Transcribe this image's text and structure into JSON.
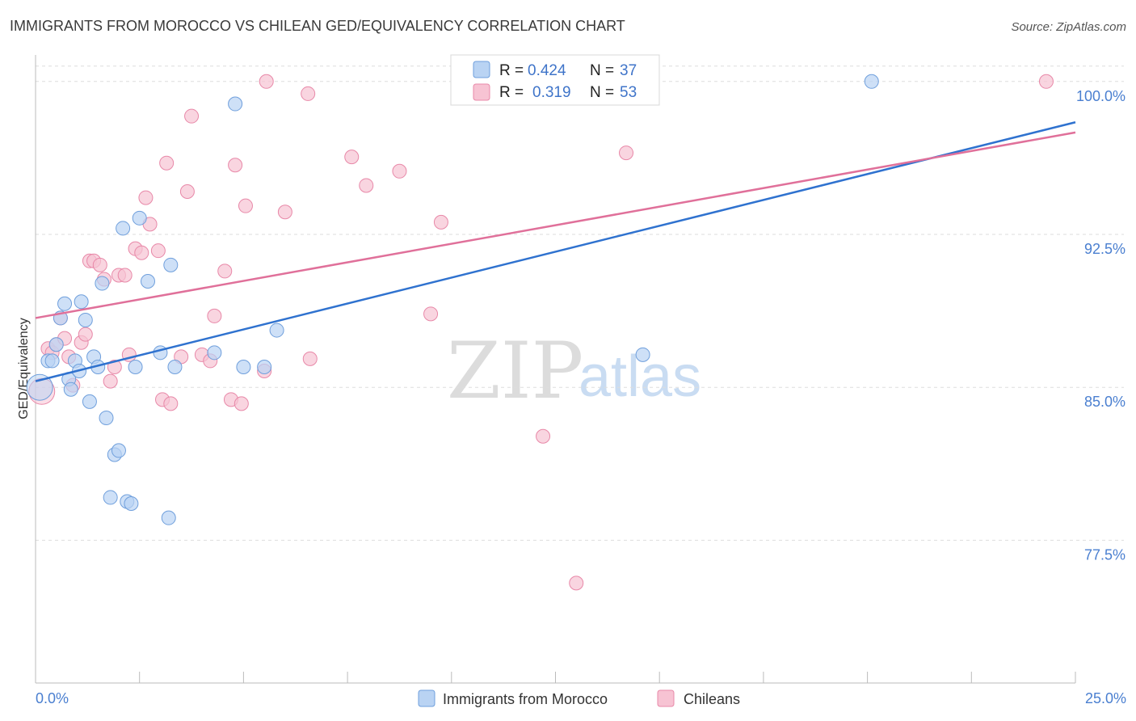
{
  "title": "IMMIGRANTS FROM MOROCCO VS CHILEAN GED/EQUIVALENCY CORRELATION CHART",
  "source": "Source: ZipAtlas.com",
  "watermark": {
    "zip": "ZIP",
    "atlas": "atlas"
  },
  "stats": {
    "morocco": {
      "r_label": "R =",
      "r": "0.424",
      "n_label": "N =",
      "n": "37"
    },
    "chileans": {
      "r_label": "R =",
      "r": "0.319",
      "n_label": "N =",
      "n": "53"
    }
  },
  "legend": {
    "morocco": "Immigrants from Morocco",
    "chileans": "Chileans"
  },
  "colors": {
    "morocco_fill": "#b9d3f3",
    "morocco_stroke": "#6f9fdc",
    "morocco_line": "#2f72cf",
    "chileans_fill": "#f7c3d3",
    "chileans_stroke": "#e888a8",
    "chileans_line": "#e0709a",
    "grid": "#dddddd",
    "tick_label": "#4a7fd0"
  },
  "chart_data": {
    "type": "scatter",
    "title": "IMMIGRANTS FROM MOROCCO VS CHILEAN GED/EQUIVALENCY CORRELATION CHART",
    "xlabel": "",
    "ylabel": "GED/Equivalency",
    "xlim": [
      0,
      25
    ],
    "ylim": [
      70.5,
      101.3
    ],
    "x_tick_labels": [
      "0.0%",
      "25.0%"
    ],
    "y_ticks": [
      77.5,
      85.0,
      92.5,
      100.0
    ],
    "y_tick_labels": [
      "77.5%",
      "85.0%",
      "92.5%",
      "100.0%"
    ],
    "grid": true,
    "legend_position": "bottom-center",
    "series": [
      {
        "name": "Immigrants from Morocco",
        "trend": [
          [
            0,
            85.3
          ],
          [
            25,
            98.0
          ]
        ],
        "points": [
          [
            0.1,
            85.0
          ],
          [
            0.3,
            86.3
          ],
          [
            0.4,
            86.3
          ],
          [
            0.5,
            87.1
          ],
          [
            0.6,
            88.4
          ],
          [
            0.7,
            89.1
          ],
          [
            0.8,
            85.4
          ],
          [
            0.85,
            84.9
          ],
          [
            0.95,
            86.3
          ],
          [
            1.1,
            89.2
          ],
          [
            1.2,
            88.3
          ],
          [
            1.3,
            84.3
          ],
          [
            1.4,
            86.5
          ],
          [
            1.5,
            86.0
          ],
          [
            1.6,
            90.1
          ],
          [
            1.7,
            83.5
          ],
          [
            1.8,
            79.6
          ],
          [
            1.9,
            81.7
          ],
          [
            2.0,
            81.9
          ],
          [
            2.1,
            92.8
          ],
          [
            2.2,
            79.4
          ],
          [
            2.3,
            79.3
          ],
          [
            2.4,
            86.0
          ],
          [
            2.5,
            93.3
          ],
          [
            2.7,
            90.2
          ],
          [
            3.0,
            86.7
          ],
          [
            3.2,
            78.6
          ],
          [
            3.25,
            91.0
          ],
          [
            3.35,
            86.0
          ],
          [
            4.3,
            86.7
          ],
          [
            4.8,
            98.9
          ],
          [
            5.0,
            86.0
          ],
          [
            5.5,
            86.0
          ],
          [
            5.8,
            87.8
          ],
          [
            14.6,
            86.6
          ],
          [
            20.1,
            100.0
          ],
          [
            1.05,
            85.8
          ]
        ]
      },
      {
        "name": "Chileans",
        "trend": [
          [
            0,
            88.4
          ],
          [
            25,
            97.5
          ]
        ],
        "points": [
          [
            0.15,
            84.8
          ],
          [
            0.3,
            86.9
          ],
          [
            0.4,
            86.7
          ],
          [
            0.5,
            87.1
          ],
          [
            0.6,
            88.4
          ],
          [
            0.7,
            87.4
          ],
          [
            0.8,
            86.5
          ],
          [
            0.9,
            85.1
          ],
          [
            1.1,
            87.2
          ],
          [
            1.2,
            87.6
          ],
          [
            1.3,
            91.2
          ],
          [
            1.4,
            91.2
          ],
          [
            1.55,
            91.0
          ],
          [
            1.65,
            90.3
          ],
          [
            1.8,
            85.3
          ],
          [
            1.9,
            86.0
          ],
          [
            2.0,
            90.5
          ],
          [
            2.15,
            90.5
          ],
          [
            2.25,
            86.6
          ],
          [
            2.4,
            91.8
          ],
          [
            2.55,
            91.6
          ],
          [
            2.65,
            94.3
          ],
          [
            2.75,
            93.0
          ],
          [
            2.95,
            91.7
          ],
          [
            3.05,
            84.4
          ],
          [
            3.15,
            96.0
          ],
          [
            3.25,
            84.2
          ],
          [
            3.5,
            86.5
          ],
          [
            3.65,
            94.6
          ],
          [
            3.75,
            98.3
          ],
          [
            4.0,
            86.6
          ],
          [
            4.2,
            86.3
          ],
          [
            4.3,
            88.5
          ],
          [
            4.55,
            90.7
          ],
          [
            4.7,
            84.4
          ],
          [
            4.8,
            95.9
          ],
          [
            4.95,
            84.2
          ],
          [
            5.05,
            93.9
          ],
          [
            5.5,
            85.8
          ],
          [
            5.55,
            100.0
          ],
          [
            6.0,
            93.6
          ],
          [
            6.55,
            99.4
          ],
          [
            6.6,
            86.4
          ],
          [
            7.6,
            96.3
          ],
          [
            7.95,
            94.9
          ],
          [
            8.75,
            95.6
          ],
          [
            9.5,
            88.6
          ],
          [
            9.75,
            93.1
          ],
          [
            12.2,
            82.6
          ],
          [
            13.0,
            75.4
          ],
          [
            14.2,
            96.5
          ],
          [
            14.5,
            100.1
          ],
          [
            24.3,
            100.0
          ]
        ]
      }
    ]
  }
}
